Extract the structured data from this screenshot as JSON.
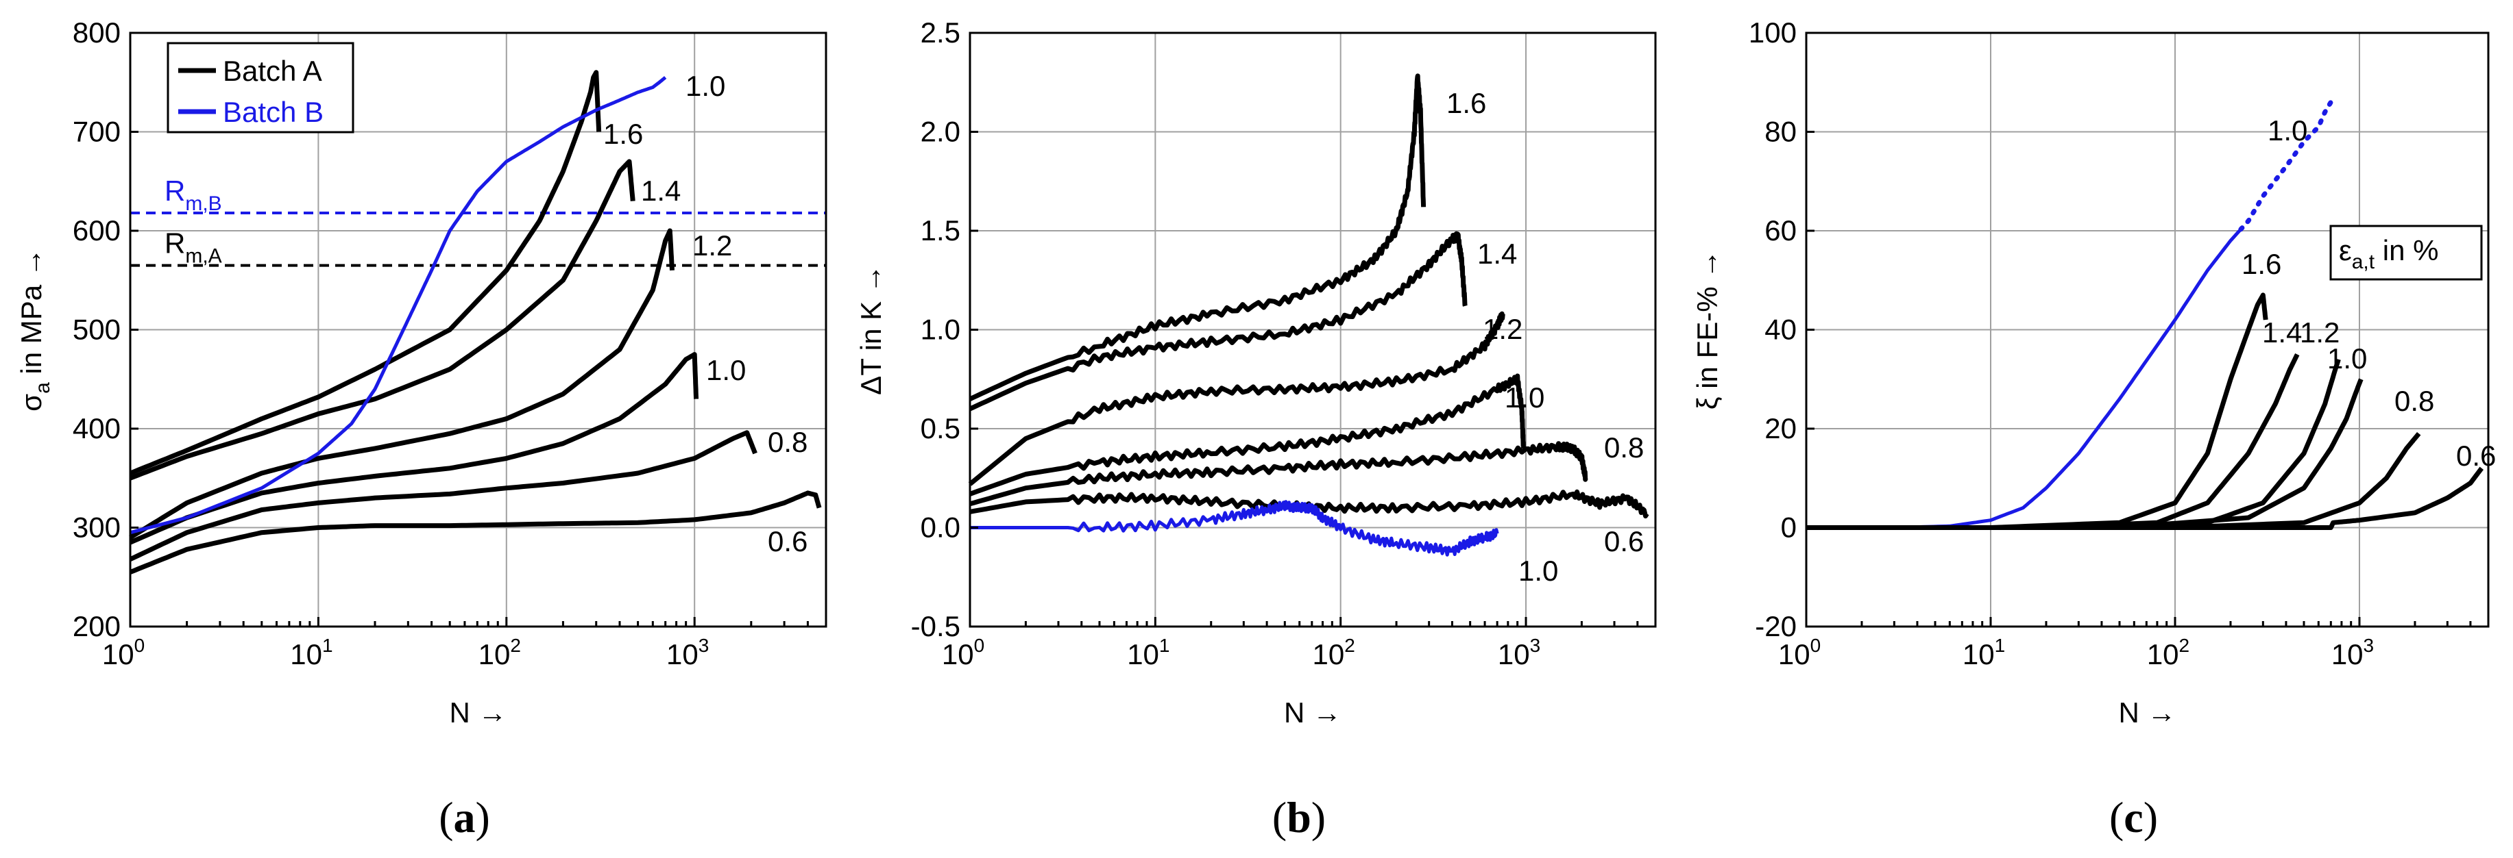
{
  "colors": {
    "batch_a": "#000000",
    "batch_b": "#1a1ae6",
    "grid": "#a0a0a0"
  },
  "chart_data": [
    {
      "type": "line",
      "panel_label": "a",
      "xscale": "log",
      "xlim": [
        1,
        5000
      ],
      "ylim": [
        200,
        800
      ],
      "yticks": [
        "200",
        "300",
        "400",
        "500",
        "600",
        "700",
        "800"
      ],
      "xticks": [
        {
          "base": "10",
          "exp": "0"
        },
        {
          "base": "10",
          "exp": "1"
        },
        {
          "base": "10",
          "exp": "2"
        },
        {
          "base": "10",
          "exp": "3"
        }
      ],
      "ylabel": {
        "sym": "σ",
        "sub": "a",
        "rest": " in MPa →"
      },
      "xlabel": "N →",
      "legend": {
        "position": "top-left",
        "entries": [
          {
            "name": "Batch A",
            "color_key": "batch_a"
          },
          {
            "name": "Batch B",
            "color_key": "batch_b"
          }
        ]
      },
      "hlines": [
        {
          "name": "R_m,B",
          "main": "R",
          "sub": "m,B",
          "y": 618,
          "color_key": "batch_b"
        },
        {
          "name": "R_m,A",
          "main": "R",
          "sub": "m,A",
          "y": 565,
          "color_key": "batch_a"
        }
      ],
      "series": [
        {
          "name": "1.6",
          "batch": "A",
          "label": "1.6",
          "x": [
            1,
            2,
            5,
            10,
            20,
            50,
            100,
            150,
            200,
            250,
            280,
            290,
            300,
            310
          ],
          "y": [
            355,
            378,
            410,
            432,
            460,
            500,
            560,
            610,
            660,
            710,
            740,
            755,
            760,
            700
          ]
        },
        {
          "name": "1.4",
          "batch": "A",
          "label": "1.4",
          "x": [
            1,
            2,
            5,
            10,
            20,
            50,
            100,
            200,
            300,
            400,
            450,
            470
          ],
          "y": [
            350,
            372,
            395,
            415,
            430,
            460,
            500,
            550,
            610,
            660,
            670,
            630
          ]
        },
        {
          "name": "1.2",
          "batch": "A",
          "label": "1.2",
          "x": [
            1,
            2,
            5,
            10,
            20,
            50,
            100,
            200,
            400,
            600,
            700,
            740,
            760
          ],
          "y": [
            290,
            325,
            355,
            370,
            380,
            395,
            410,
            435,
            480,
            540,
            590,
            600,
            560
          ]
        },
        {
          "name": "1.0",
          "batch": "A",
          "label": "1.0",
          "x": [
            1,
            2,
            5,
            10,
            20,
            50,
            100,
            200,
            400,
            700,
            900,
            1000,
            1020
          ],
          "y": [
            285,
            310,
            335,
            345,
            352,
            360,
            370,
            385,
            410,
            445,
            470,
            475,
            430
          ]
        },
        {
          "name": "0.8",
          "batch": "A",
          "label": "0.8",
          "x": [
            1,
            2,
            5,
            10,
            20,
            50,
            100,
            200,
            500,
            1000,
            1600,
            1900,
            2100
          ],
          "y": [
            268,
            295,
            318,
            325,
            330,
            334,
            340,
            345,
            355,
            370,
            390,
            396,
            375
          ]
        },
        {
          "name": "0.6",
          "batch": "A",
          "label": "0.6",
          "x": [
            1,
            2,
            5,
            10,
            20,
            50,
            100,
            200,
            500,
            1000,
            2000,
            3000,
            4000,
            4400,
            4600
          ],
          "y": [
            255,
            278,
            295,
            300,
            302,
            302,
            303,
            304,
            305,
            308,
            315,
            325,
            335,
            333,
            320
          ]
        },
        {
          "name": "1.0 B",
          "batch": "B",
          "label": "1.0",
          "x": [
            1,
            2,
            5,
            10,
            15,
            20,
            30,
            40,
            50,
            70,
            100,
            150,
            200,
            300,
            400,
            500,
            600,
            650,
            700
          ],
          "y": [
            295,
            310,
            340,
            375,
            405,
            440,
            510,
            560,
            600,
            640,
            670,
            690,
            705,
            722,
            732,
            740,
            745,
            750,
            755
          ]
        }
      ]
    },
    {
      "type": "line",
      "panel_label": "b",
      "xscale": "log",
      "xlim": [
        1,
        5000
      ],
      "ylim": [
        -0.5,
        2.5
      ],
      "yticks": [
        "-0.5",
        "0.0",
        "0.5",
        "1.0",
        "1.5",
        "2.0",
        "2.5"
      ],
      "xticks": [
        {
          "base": "10",
          "exp": "0"
        },
        {
          "base": "10",
          "exp": "1"
        },
        {
          "base": "10",
          "exp": "2"
        },
        {
          "base": "10",
          "exp": "3"
        }
      ],
      "ylabel": {
        "sym": "ΔT",
        "sub": "",
        "rest": " in K →"
      },
      "xlabel": "N →",
      "series": [
        {
          "name": "1.6",
          "batch": "A",
          "label": "1.6",
          "x": [
            1,
            2,
            5,
            10,
            20,
            50,
            100,
            150,
            200,
            230,
            250,
            260,
            270,
            280
          ],
          "y": [
            0.65,
            0.78,
            0.92,
            1.02,
            1.08,
            1.15,
            1.25,
            1.35,
            1.5,
            1.7,
            2.0,
            2.28,
            2.1,
            1.62
          ]
        },
        {
          "name": "1.4",
          "batch": "A",
          "label": "1.4",
          "x": [
            1,
            2,
            5,
            10,
            20,
            50,
            100,
            200,
            300,
            400,
            430,
            450,
            470
          ],
          "y": [
            0.6,
            0.73,
            0.86,
            0.91,
            0.94,
            0.98,
            1.05,
            1.18,
            1.33,
            1.46,
            1.47,
            1.35,
            1.12
          ]
        },
        {
          "name": "1.2",
          "batch": "A",
          "label": "1.2",
          "x": [
            1,
            2,
            5,
            10,
            20,
            50,
            100,
            200,
            400,
            600,
            700,
            750
          ],
          "y": [
            0.22,
            0.45,
            0.6,
            0.66,
            0.69,
            0.7,
            0.71,
            0.74,
            0.8,
            0.92,
            1.02,
            1.08
          ]
        },
        {
          "name": "1.0",
          "batch": "A",
          "label": "1.0",
          "x": [
            1,
            2,
            5,
            10,
            20,
            50,
            100,
            200,
            400,
            700,
            900,
            950,
            970
          ],
          "y": [
            0.17,
            0.27,
            0.33,
            0.36,
            0.38,
            0.41,
            0.45,
            0.5,
            0.58,
            0.7,
            0.75,
            0.6,
            0.4
          ]
        },
        {
          "name": "0.8",
          "batch": "A",
          "label": "0.8",
          "x": [
            1,
            2,
            5,
            10,
            20,
            50,
            100,
            200,
            500,
            1000,
            1500,
            1800,
            2000,
            2100
          ],
          "y": [
            0.12,
            0.2,
            0.25,
            0.27,
            0.28,
            0.3,
            0.32,
            0.33,
            0.36,
            0.39,
            0.41,
            0.4,
            0.35,
            0.25
          ]
        },
        {
          "name": "0.6",
          "batch": "A",
          "label": "0.6",
          "x": [
            1,
            2,
            5,
            10,
            20,
            50,
            100,
            200,
            500,
            1000,
            1800,
            2500,
            3500,
            4500
          ],
          "y": [
            0.08,
            0.13,
            0.15,
            0.15,
            0.13,
            0.11,
            0.1,
            0.1,
            0.11,
            0.13,
            0.17,
            0.12,
            0.15,
            0.07
          ]
        },
        {
          "name": "1.0 B",
          "batch": "B",
          "label": "1.0",
          "x": [
            1,
            2,
            5,
            10,
            20,
            30,
            40,
            50,
            60,
            70,
            80,
            100,
            150,
            200,
            300,
            400,
            500,
            600,
            700
          ],
          "y": [
            0.0,
            0.0,
            0.0,
            0.01,
            0.04,
            0.07,
            0.09,
            0.11,
            0.1,
            0.1,
            0.05,
            0.0,
            -0.06,
            -0.08,
            -0.1,
            -0.12,
            -0.07,
            -0.05,
            -0.03
          ]
        }
      ]
    },
    {
      "type": "line",
      "panel_label": "c",
      "xscale": "log",
      "xlim": [
        1,
        5000
      ],
      "ylim": [
        -20,
        100
      ],
      "yticks": [
        "-20",
        "0",
        "20",
        "40",
        "60",
        "80",
        "100"
      ],
      "xticks": [
        {
          "base": "10",
          "exp": "0"
        },
        {
          "base": "10",
          "exp": "1"
        },
        {
          "base": "10",
          "exp": "2"
        },
        {
          "base": "10",
          "exp": "3"
        }
      ],
      "ylabel": {
        "sym": "ξ",
        "sub": "",
        "rest": " in FE-% →"
      },
      "xlabel": "N →",
      "annotation": {
        "main": "ε",
        "sub": "a,t",
        "rest": " in %"
      },
      "series": [
        {
          "name": "1.0 B",
          "batch": "B",
          "label": "1.0",
          "x": [
            1,
            3,
            6,
            10,
            15,
            20,
            30,
            50,
            100,
            150,
            200,
            250,
            300,
            400,
            500,
            600,
            650,
            700
          ],
          "y": [
            0,
            0,
            0.3,
            1.5,
            4,
            8,
            15,
            26,
            42,
            52,
            58,
            62,
            67,
            73,
            78,
            81,
            84,
            86
          ]
        },
        {
          "name": "1.6",
          "batch": "A",
          "label": "1.6",
          "x": [
            1,
            10,
            50,
            100,
            150,
            200,
            250,
            280,
            300,
            310
          ],
          "y": [
            0,
            0,
            1,
            5,
            15,
            30,
            40,
            45,
            47,
            42
          ]
        },
        {
          "name": "1.4",
          "batch": "A",
          "label": "1.4",
          "x": [
            1,
            20,
            80,
            150,
            250,
            350,
            420,
            460
          ],
          "y": [
            0,
            0,
            1,
            5,
            15,
            25,
            32,
            35
          ]
        },
        {
          "name": "1.2",
          "batch": "A",
          "label": "1.2",
          "x": [
            1,
            30,
            150,
            300,
            500,
            650,
            740,
            770
          ],
          "y": [
            0,
            0,
            1,
            5,
            15,
            25,
            32,
            34
          ]
        },
        {
          "name": "1.0",
          "batch": "A",
          "label": "1.0",
          "x": [
            1,
            50,
            250,
            500,
            700,
            850,
            950,
            1020
          ],
          "y": [
            0,
            0,
            2,
            8,
            16,
            22,
            27,
            30
          ]
        },
        {
          "name": "0.8",
          "batch": "A",
          "label": "0.8",
          "x": [
            1,
            100,
            500,
            1000,
            1400,
            1800,
            2100
          ],
          "y": [
            0,
            0,
            1,
            5,
            10,
            16,
            19
          ]
        },
        {
          "name": "0.6",
          "batch": "A",
          "label": "0.6",
          "x": [
            1,
            700,
            720,
            1000,
            2000,
            3000,
            4000,
            4600
          ],
          "y": [
            0,
            0,
            1,
            1.5,
            3,
            6,
            9,
            12
          ]
        }
      ]
    }
  ]
}
